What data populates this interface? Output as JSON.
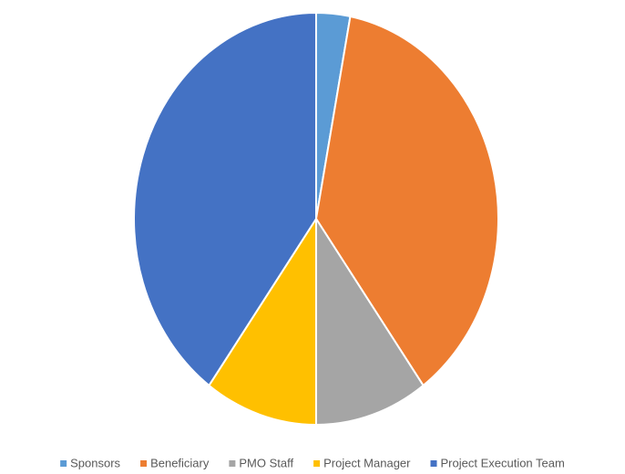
{
  "chart_data": {
    "type": "pie",
    "categories": [
      "Sponsors",
      "Beneficiary",
      "PMO Staff",
      "Project Manager",
      "Project Execution Team"
    ],
    "values": [
      3,
      37,
      10,
      10,
      40
    ],
    "colors": [
      "#5b9bd5",
      "#ed7d31",
      "#a5a5a5",
      "#ffc000",
      "#4472c4"
    ],
    "legend": "bottom"
  }
}
